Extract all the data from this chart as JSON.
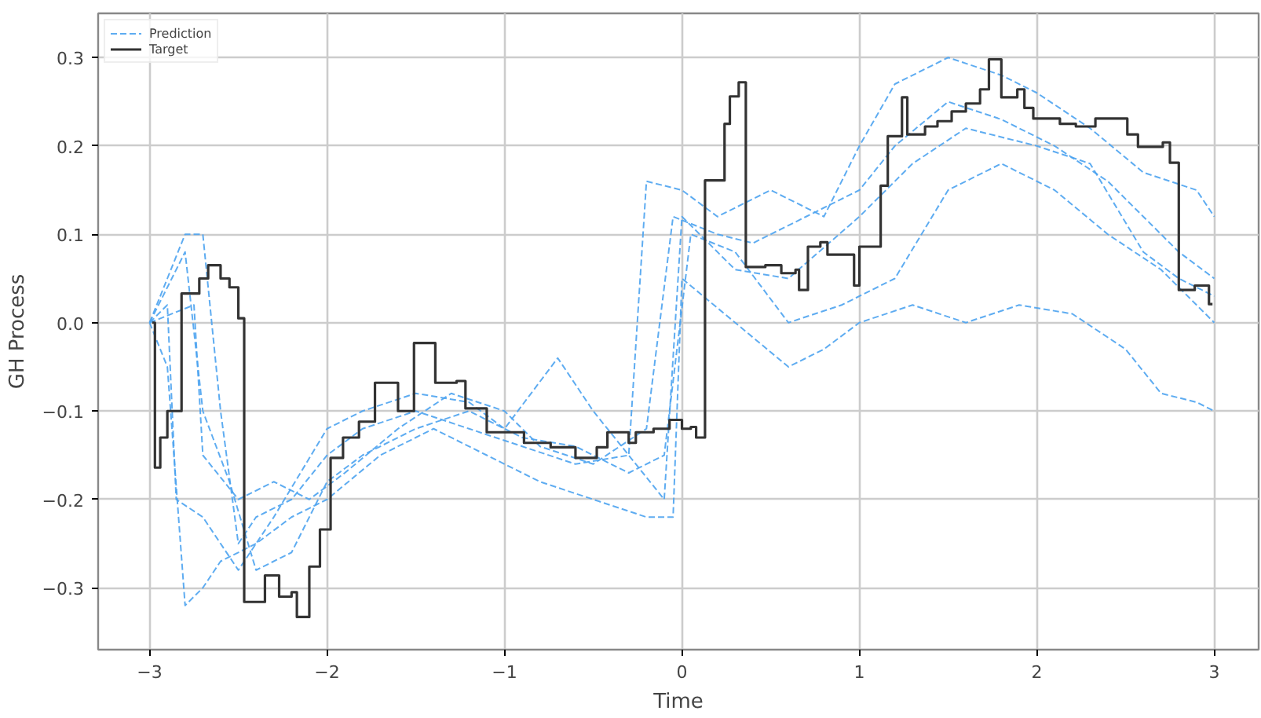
{
  "chart_data": {
    "type": "line",
    "xlabel": "Time",
    "ylabel": "GH Process",
    "xlim": [
      -3.29,
      3.25
    ],
    "ylim": [
      -0.37,
      0.35
    ],
    "xticks": [
      {
        "value": -3,
        "label": "−3"
      },
      {
        "value": -2,
        "label": "−2"
      },
      {
        "value": -1,
        "label": "−1"
      },
      0,
      1,
      2,
      3
    ],
    "yticks": [
      {
        "value": -0.3,
        "label": "−0.3"
      },
      {
        "value": -0.2,
        "label": "−0.2"
      },
      {
        "value": -0.1,
        "label": "−0.1"
      },
      {
        "value": 0,
        "label": "0.0"
      },
      0.1,
      0.2,
      0.3
    ],
    "grid": true,
    "legend": "top left",
    "series": [
      {
        "name": "Prediction",
        "color": "#4da3f0",
        "line_style": "dashed",
        "x": [
          -3,
          -2.9,
          -2.8,
          -2.7,
          -2.6,
          -2.5,
          -2.4,
          -2.2,
          -2.0,
          -1.8,
          -1.5,
          -1.2,
          -0.9,
          -0.6,
          -0.3,
          -0.2,
          0.0,
          0.2,
          0.5,
          0.8,
          1.0,
          1.2,
          1.5,
          1.8,
          2.0,
          2.3,
          2.6,
          2.9,
          3.0
        ],
        "values": [
          0.0,
          0.05,
          0.1,
          0.1,
          -0.1,
          -0.25,
          -0.22,
          -0.2,
          -0.15,
          -0.12,
          -0.1,
          -0.12,
          -0.14,
          -0.16,
          -0.15,
          0.16,
          0.15,
          0.12,
          0.15,
          0.12,
          0.2,
          0.27,
          0.3,
          0.28,
          0.26,
          0.22,
          0.17,
          0.15,
          0.12
        ]
      },
      {
        "color": "#4da3f0",
        "line_style": "dashed",
        "x": [
          -3,
          -2.9,
          -2.8,
          -2.7,
          -2.6,
          -2.4,
          -2.2,
          -2.0,
          -1.7,
          -1.4,
          -1.1,
          -0.8,
          -0.5,
          -0.2,
          -0.05,
          0.0,
          0.3,
          0.6,
          0.8,
          1.0,
          1.3,
          1.6,
          1.9,
          2.2,
          2.5,
          2.7,
          2.9,
          3.0
        ],
        "values": [
          0.0,
          -0.05,
          -0.32,
          -0.3,
          -0.27,
          -0.25,
          -0.22,
          -0.2,
          -0.15,
          -0.12,
          -0.15,
          -0.18,
          -0.2,
          -0.22,
          -0.22,
          0.05,
          0.0,
          -0.05,
          -0.03,
          0.0,
          0.02,
          0.0,
          0.02,
          0.01,
          -0.03,
          -0.08,
          -0.09,
          -0.1
        ]
      },
      {
        "color": "#4da3f0",
        "line_style": "dashed",
        "x": [
          -3,
          -2.9,
          -2.85,
          -2.7,
          -2.5,
          -2.3,
          -2.0,
          -1.8,
          -1.5,
          -1.2,
          -1.0,
          -0.7,
          -0.5,
          -0.3,
          -0.1,
          0.0,
          0.3,
          0.6,
          1.0,
          1.3,
          1.6,
          2.0,
          2.3,
          2.6,
          2.8,
          3.0
        ],
        "values": [
          0.0,
          0.02,
          -0.2,
          -0.22,
          -0.28,
          -0.22,
          -0.12,
          -0.1,
          -0.08,
          -0.09,
          -0.12,
          -0.04,
          -0.1,
          -0.15,
          -0.2,
          0.12,
          0.06,
          0.05,
          0.12,
          0.18,
          0.22,
          0.2,
          0.18,
          0.08,
          0.05,
          0.03
        ]
      },
      {
        "color": "#4da3f0",
        "line_style": "dashed",
        "x": [
          -3,
          -2.8,
          -2.7,
          -2.55,
          -2.4,
          -2.2,
          -2.0,
          -1.8,
          -1.5,
          -1.2,
          -0.9,
          -0.6,
          -0.3,
          -0.1,
          0.05,
          0.3,
          0.6,
          0.9,
          1.2,
          1.5,
          1.8,
          2.1,
          2.4,
          2.7,
          3.0
        ],
        "values": [
          0.0,
          0.08,
          -0.1,
          -0.18,
          -0.28,
          -0.26,
          -0.18,
          -0.15,
          -0.12,
          -0.1,
          -0.13,
          -0.14,
          -0.17,
          -0.15,
          0.1,
          0.08,
          0.0,
          0.02,
          0.05,
          0.15,
          0.18,
          0.15,
          0.1,
          0.06,
          0.0
        ]
      },
      {
        "color": "#4da3f0",
        "line_style": "dashed",
        "x": [
          -3,
          -2.75,
          -2.7,
          -2.5,
          -2.3,
          -2.1,
          -1.9,
          -1.6,
          -1.3,
          -1.0,
          -0.8,
          -0.5,
          -0.2,
          -0.05,
          0.2,
          0.4,
          0.7,
          1.0,
          1.2,
          1.5,
          1.8,
          2.1,
          2.4,
          2.6,
          2.8,
          3.0
        ],
        "values": [
          0.0,
          0.02,
          -0.15,
          -0.2,
          -0.18,
          -0.2,
          -0.17,
          -0.12,
          -0.08,
          -0.1,
          -0.14,
          -0.16,
          -0.12,
          0.12,
          0.1,
          0.09,
          0.12,
          0.15,
          0.2,
          0.25,
          0.23,
          0.2,
          0.16,
          0.12,
          0.08,
          0.05
        ]
      },
      {
        "name": "Target",
        "type": "step",
        "color": "#333333",
        "line_style": "solid",
        "x": [
          -2.985,
          -2.97,
          -2.94,
          -2.9,
          -2.82,
          -2.72,
          -2.67,
          -2.6,
          -2.55,
          -2.5,
          -2.467,
          -2.35,
          -2.27,
          -2.2,
          -2.17,
          -2.1,
          -2.04,
          -1.98,
          -1.91,
          -1.82,
          -1.73,
          -1.6,
          -1.51,
          -1.39,
          -1.27,
          -1.22,
          -1.1,
          -0.89,
          -0.74,
          -0.6,
          -0.48,
          -0.42,
          -0.3,
          -0.26,
          -0.16,
          -0.07,
          0.0,
          0.05,
          0.08,
          0.13,
          0.24,
          0.27,
          0.32,
          0.36,
          0.47,
          0.56,
          0.64,
          0.66,
          0.71,
          0.78,
          0.82,
          0.94,
          0.97,
          1.0,
          1.1,
          1.12,
          1.16,
          1.24,
          1.27,
          1.37,
          1.44,
          1.52,
          1.6,
          1.68,
          1.73,
          1.8,
          1.89,
          1.93,
          1.98,
          2.13,
          2.22,
          2.33,
          2.42,
          2.51,
          2.57,
          2.71,
          2.75,
          2.8,
          2.89,
          2.97,
          2.99
        ],
        "values": [
          0.0,
          -0.164,
          -0.13,
          -0.1,
          0.033,
          0.05,
          0.065,
          0.05,
          0.04,
          0.005,
          -0.316,
          -0.286,
          -0.31,
          -0.305,
          -0.333,
          -0.276,
          -0.234,
          -0.153,
          -0.13,
          -0.112,
          -0.068,
          -0.1,
          -0.023,
          -0.068,
          -0.066,
          -0.097,
          -0.124,
          -0.136,
          -0.141,
          -0.153,
          -0.141,
          -0.124,
          -0.136,
          -0.124,
          -0.12,
          -0.11,
          -0.12,
          -0.118,
          -0.13,
          0.161,
          0.225,
          0.256,
          0.272,
          0.063,
          0.065,
          0.056,
          0.06,
          0.037,
          0.086,
          0.091,
          0.077,
          0.077,
          0.042,
          0.086,
          0.086,
          0.155,
          0.211,
          0.255,
          0.213,
          0.222,
          0.228,
          0.239,
          0.248,
          0.264,
          0.298,
          0.255,
          0.264,
          0.243,
          0.231,
          0.225,
          0.222,
          0.231,
          0.231,
          0.213,
          0.199,
          0.204,
          0.181,
          0.037,
          0.042,
          0.021,
          0.021
        ]
      }
    ]
  }
}
